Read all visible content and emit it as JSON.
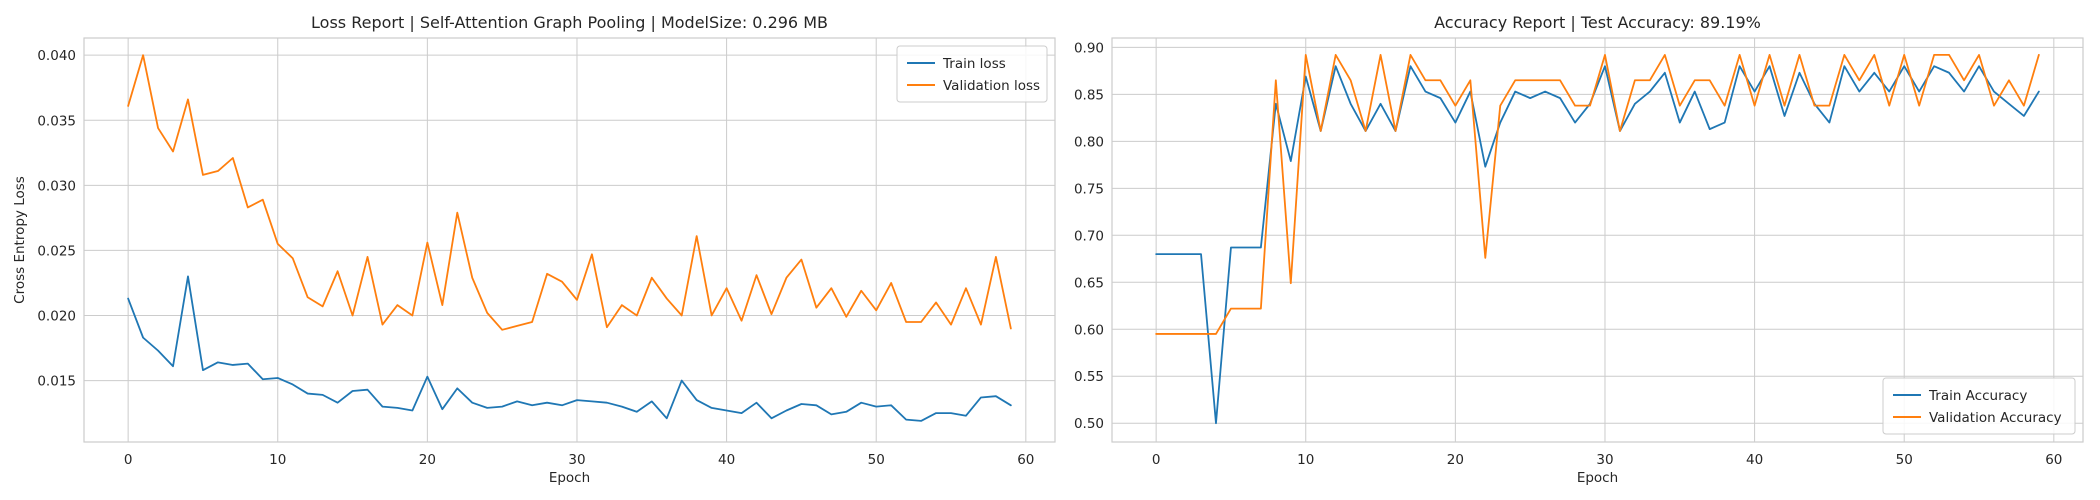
{
  "colors": {
    "train": "#1f77b4",
    "validation": "#ff7f0e"
  },
  "chart_data": [
    {
      "type": "line",
      "title": "Loss Report | Self-Attention Graph Pooling | ModelSize: 0.296 MB",
      "xlabel": "Epoch",
      "ylabel": "Cross Entropy Loss",
      "xlim": [
        -2.95,
        61.95
      ],
      "ylim": [
        0.01028,
        0.04132
      ],
      "xticks": [
        0,
        10,
        20,
        30,
        40,
        50,
        60
      ],
      "yticks": [
        0.015,
        0.02,
        0.025,
        0.03,
        0.035,
        0.04
      ],
      "ytick_labels": [
        "0.015",
        "0.020",
        "0.025",
        "0.030",
        "0.035",
        "0.040"
      ],
      "grid": true,
      "legend_loc": "upper right",
      "series": [
        {
          "name": "Train loss",
          "color_key": "train",
          "values": [
            0.0213,
            0.0183,
            0.0173,
            0.0161,
            0.023,
            0.0158,
            0.0164,
            0.0162,
            0.0163,
            0.0151,
            0.0152,
            0.0147,
            0.014,
            0.0139,
            0.0133,
            0.0142,
            0.0143,
            0.013,
            0.0129,
            0.0127,
            0.0153,
            0.0128,
            0.0144,
            0.0133,
            0.0129,
            0.013,
            0.0134,
            0.0131,
            0.0133,
            0.0131,
            0.0135,
            0.0134,
            0.0133,
            0.013,
            0.0126,
            0.0134,
            0.0121,
            0.015,
            0.0135,
            0.0129,
            0.0127,
            0.0125,
            0.0133,
            0.0121,
            0.0127,
            0.0132,
            0.0131,
            0.0124,
            0.0126,
            0.0133,
            0.013,
            0.0131,
            0.012,
            0.0119,
            0.0125,
            0.0125,
            0.0123,
            0.0137,
            0.0138,
            0.0131
          ]
        },
        {
          "name": "Validation loss",
          "color_key": "validation",
          "values": [
            0.0361,
            0.04,
            0.0344,
            0.0326,
            0.0366,
            0.0308,
            0.0311,
            0.0321,
            0.0283,
            0.0289,
            0.0255,
            0.0244,
            0.0214,
            0.0207,
            0.0234,
            0.02,
            0.0245,
            0.0193,
            0.0208,
            0.02,
            0.0256,
            0.0208,
            0.0279,
            0.0229,
            0.0202,
            0.0189,
            0.0192,
            0.0195,
            0.0232,
            0.0226,
            0.0212,
            0.0247,
            0.0191,
            0.0208,
            0.02,
            0.0229,
            0.0213,
            0.02,
            0.0261,
            0.02,
            0.0221,
            0.0196,
            0.0231,
            0.0201,
            0.0229,
            0.0243,
            0.0206,
            0.0221,
            0.0199,
            0.0219,
            0.0204,
            0.0225,
            0.0195,
            0.0195,
            0.021,
            0.0193,
            0.0221,
            0.0193,
            0.0245,
            0.019
          ]
        }
      ]
    },
    {
      "type": "line",
      "title": "Accuracy Report | Test Accuracy: 89.19%",
      "xlabel": "Epoch",
      "ylabel": "",
      "xlim": [
        -2.95,
        61.95
      ],
      "ylim": [
        0.48,
        0.91
      ],
      "xticks": [
        0,
        10,
        20,
        30,
        40,
        50,
        60
      ],
      "yticks": [
        0.5,
        0.55,
        0.6,
        0.65,
        0.7,
        0.75,
        0.8,
        0.85,
        0.9
      ],
      "ytick_labels": [
        "0.50",
        "0.55",
        "0.60",
        "0.65",
        "0.70",
        "0.75",
        "0.80",
        "0.85",
        "0.90"
      ],
      "grid": true,
      "legend_loc": "lower right",
      "series": [
        {
          "name": "Train Accuracy",
          "color_key": "train",
          "values": [
            0.68,
            0.68,
            0.68,
            0.68,
            0.5,
            0.687,
            0.687,
            0.687,
            0.84,
            0.779,
            0.869,
            0.811,
            0.88,
            0.84,
            0.811,
            0.84,
            0.811,
            0.88,
            0.853,
            0.846,
            0.82,
            0.853,
            0.773,
            0.82,
            0.853,
            0.846,
            0.853,
            0.846,
            0.82,
            0.84,
            0.88,
            0.811,
            0.84,
            0.853,
            0.873,
            0.82,
            0.853,
            0.813,
            0.82,
            0.88,
            0.853,
            0.88,
            0.827,
            0.873,
            0.84,
            0.82,
            0.88,
            0.853,
            0.873,
            0.853,
            0.88,
            0.853,
            0.88,
            0.873,
            0.853,
            0.88,
            0.853,
            0.84,
            0.827,
            0.853
          ]
        },
        {
          "name": "Validation Accuracy",
          "color_key": "validation",
          "values": [
            0.595,
            0.595,
            0.595,
            0.595,
            0.595,
            0.622,
            0.622,
            0.622,
            0.865,
            0.649,
            0.892,
            0.811,
            0.892,
            0.865,
            0.811,
            0.892,
            0.811,
            0.892,
            0.865,
            0.865,
            0.838,
            0.865,
            0.676,
            0.838,
            0.865,
            0.865,
            0.865,
            0.865,
            0.838,
            0.838,
            0.892,
            0.811,
            0.865,
            0.865,
            0.892,
            0.838,
            0.865,
            0.865,
            0.838,
            0.892,
            0.838,
            0.892,
            0.838,
            0.892,
            0.838,
            0.838,
            0.892,
            0.865,
            0.892,
            0.838,
            0.892,
            0.838,
            0.892,
            0.892,
            0.865,
            0.892,
            0.838,
            0.865,
            0.838,
            0.892
          ]
        }
      ]
    }
  ]
}
